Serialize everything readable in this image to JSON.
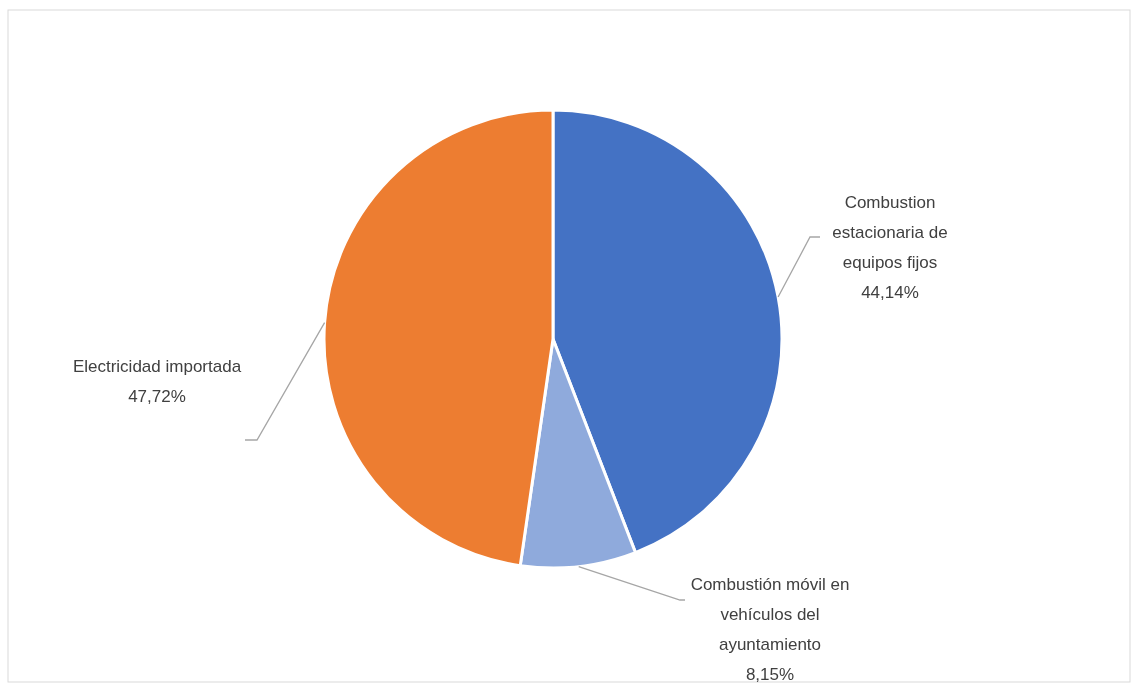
{
  "chart_data": {
    "type": "pie",
    "categories": [
      "Combustion estacionaria de equipos fijos",
      "Combustión móvil en vehículos del ayuntamiento",
      "Electricidad importada"
    ],
    "values": [
      44.14,
      8.15,
      47.72
    ],
    "colors": [
      "#4472c4",
      "#8faadc",
      "#ed7d31"
    ],
    "value_labels": [
      "44,14%",
      "8,15%",
      "47,72%"
    ]
  }
}
